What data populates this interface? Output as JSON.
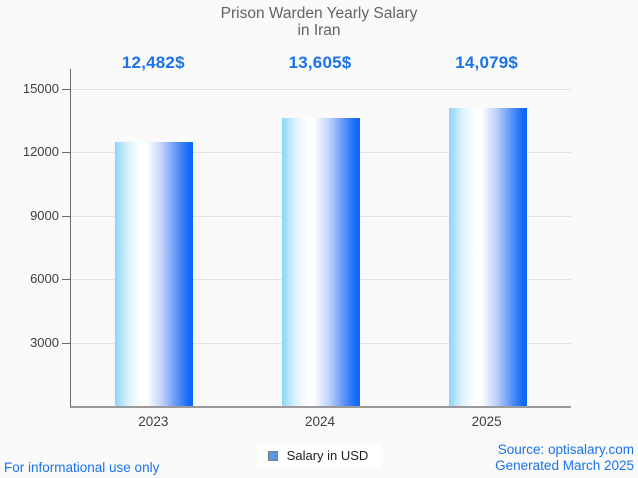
{
  "title": {
    "line1": "Prison Warden Yearly Salary",
    "line2": "in Iran"
  },
  "chart_data": {
    "type": "bar",
    "title": "Prison Warden Yearly Salary in Iran",
    "categories": [
      "2023",
      "2024",
      "2025"
    ],
    "series": [
      {
        "name": "Salary in USD",
        "values": [
          12482,
          13605,
          14079
        ]
      }
    ],
    "value_labels": [
      "12,482$",
      "13,605$",
      "14,079$"
    ],
    "xlabel": "",
    "ylabel": "",
    "ylim": [
      0,
      15000
    ],
    "yticks": [
      3000,
      6000,
      9000,
      12000,
      15000
    ],
    "grid": true,
    "legend_position": "bottom",
    "colors": {
      "bar_gradient_left": "#8ad5fc",
      "bar_gradient_mid": "#ffffff",
      "bar_gradient_right": "#0d66f5",
      "annotation_blue": "#1a73e8",
      "title_gray": "#5f6368",
      "axis_label_gray": "#3c4043",
      "gridline_gray": "#e4e4e4",
      "legend_marker_fill": "#5a95e8"
    }
  },
  "legend": {
    "label": "Salary in USD"
  },
  "footer": {
    "left_note": "For informational use only",
    "source_line": "Source: optisalary.com",
    "generated_line": "Generated March 2025"
  }
}
